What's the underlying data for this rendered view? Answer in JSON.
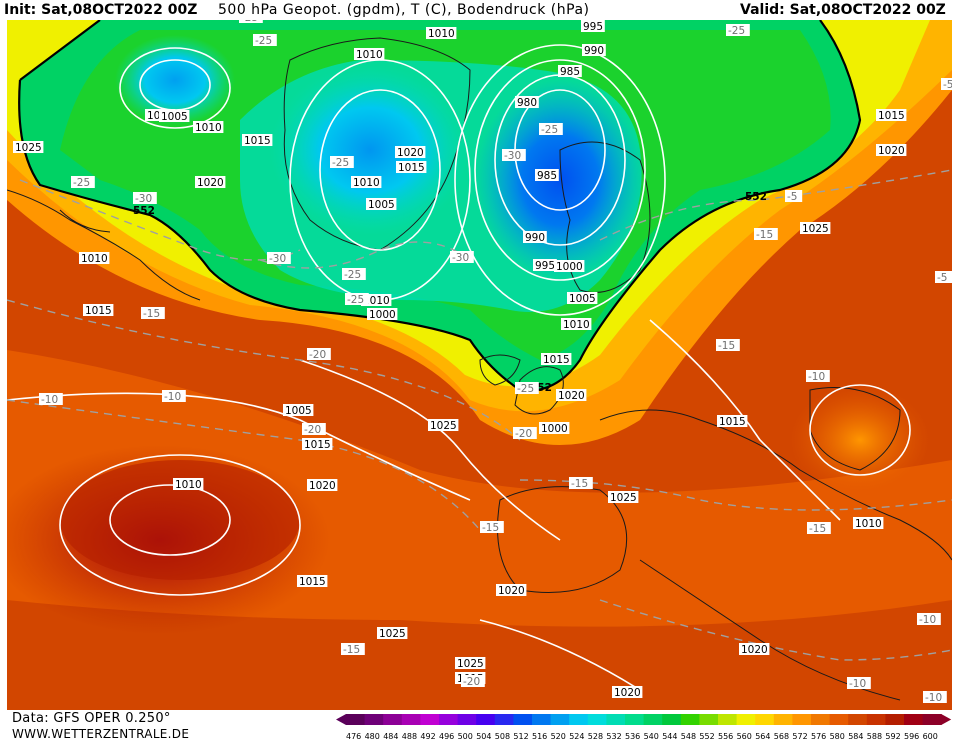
{
  "header": {
    "init": "Init: Sat,08OCT2022 00Z",
    "title": "500 hPa Geopot. (gpdm), T (C), Bodendruck (hPa)",
    "valid": "Valid: Sat,08OCT2022 00Z"
  },
  "footer": {
    "data_source": "Data: GFS OPER 0.250°",
    "website": "WWW.WETTERZENTRALE.DE"
  },
  "colorbar": {
    "ticks": [
      "476",
      "480",
      "484",
      "488",
      "492",
      "496",
      "500",
      "504",
      "508",
      "512",
      "516",
      "520",
      "524",
      "528",
      "532",
      "536",
      "540",
      "544",
      "548",
      "552",
      "556",
      "560",
      "564",
      "568",
      "572",
      "576",
      "580",
      "584",
      "588",
      "592",
      "596",
      "600"
    ],
    "colors": [
      "#5a005a",
      "#6e0078",
      "#8c0096",
      "#a800b4",
      "#c000d2",
      "#9600dc",
      "#6e00e6",
      "#4600f0",
      "#2828f0",
      "#0050f0",
      "#0078f0",
      "#00a0f0",
      "#00c8f0",
      "#00dcdc",
      "#00dcb4",
      "#00dc8c",
      "#00d264",
      "#00c83c",
      "#32d200",
      "#78dc00",
      "#bee600",
      "#f0f000",
      "#ffd700",
      "#ffb400",
      "#ff9600",
      "#f07800",
      "#e65a00",
      "#d24600",
      "#c83200",
      "#b41e00",
      "#a00014",
      "#8c0028"
    ]
  },
  "map": {
    "contour_552_labels": [
      "552",
      "552",
      "552"
    ],
    "pressure_labels": [
      "1010",
      "1010",
      "1015",
      "1005",
      "1010",
      "1015",
      "1025",
      "1020",
      "1010",
      "1015",
      "1020",
      "1015",
      "1010",
      "1005",
      "1010",
      "1000",
      "995",
      "990",
      "985",
      "980",
      "985",
      "990",
      "995",
      "1000",
      "1005",
      "1010",
      "1015",
      "1020",
      "1000",
      "1005",
      "1025",
      "1015",
      "1020",
      "1010",
      "1015",
      "1020",
      "1025",
      "1025",
      "1020",
      "1025",
      "1020",
      "1015",
      "1025",
      "1015",
      "1020",
      "1010",
      "1015"
    ],
    "temperature_labels": [
      "-25",
      "-25",
      "-25",
      "-30",
      "-25",
      "-25",
      "-30",
      "-30",
      "-30",
      "-25",
      "-25",
      "-20",
      "-15",
      "-15",
      "-15",
      "-10",
      "-10",
      "-10",
      "-25",
      "-20",
      "-15",
      "-15",
      "-20",
      "-20",
      "-15",
      "-15",
      "-10",
      "-10",
      "-10",
      "-5",
      "-5",
      "-5",
      "-25"
    ]
  }
}
